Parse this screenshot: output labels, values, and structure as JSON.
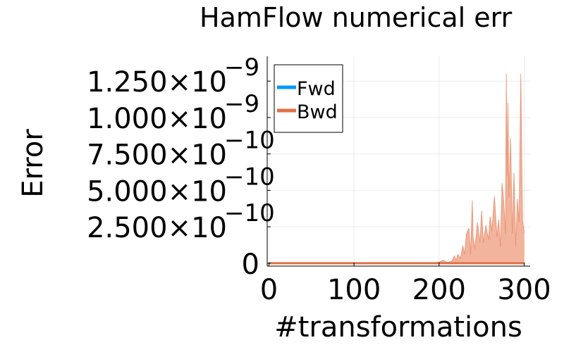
{
  "chart_data": {
    "type": "line",
    "title": "HamFlow numerical err",
    "xlabel": "#transformations",
    "ylabel": "Error",
    "xlim": [
      -2,
      307
    ],
    "ylim": [
      -2e-11,
      1.42e-09
    ],
    "grid": true,
    "legend_position": "top-left",
    "x_ticks": [
      {
        "value": 0,
        "label": "0"
      },
      {
        "value": 100,
        "label": "100"
      },
      {
        "value": 200,
        "label": "200"
      },
      {
        "value": 300,
        "label": "300"
      }
    ],
    "y_ticks": [
      {
        "value": 0,
        "mantissa": "0",
        "exponent": ""
      },
      {
        "value": 2.5e-10,
        "mantissa": "2.500×10",
        "exponent": "−10"
      },
      {
        "value": 5e-10,
        "mantissa": "5.000×10",
        "exponent": "−10"
      },
      {
        "value": 7.5e-10,
        "mantissa": "7.500×10",
        "exponent": "−10"
      },
      {
        "value": 1e-09,
        "mantissa": "1.000×10",
        "exponent": "−9"
      },
      {
        "value": 1.25e-09,
        "mantissa": "1.250×10",
        "exponent": "−9"
      }
    ],
    "series": [
      {
        "name": "Fwd",
        "color": "#009af9",
        "x": [
          0,
          50,
          100,
          150,
          200,
          250,
          300
        ],
        "y": [
          0,
          0,
          0,
          0,
          0,
          0,
          0
        ]
      },
      {
        "name": "Bwd",
        "color": "#e26f46",
        "fill_color": "#f2b49c",
        "x": [
          0,
          150,
          195,
          200,
          205,
          210,
          215,
          218,
          220,
          222,
          225,
          228,
          230,
          232,
          235,
          237,
          239,
          240,
          242,
          245,
          248,
          250,
          252,
          255,
          258,
          260,
          262,
          265,
          268,
          270,
          272,
          274,
          276,
          278,
          279,
          280,
          281,
          282,
          284,
          286,
          288,
          290,
          292,
          294,
          296,
          298,
          300
        ],
        "y": [
          0,
          0,
          4e-12,
          8e-12,
          2e-11,
          5e-12,
          1.5e-11,
          5e-11,
          1.8e-11,
          6e-11,
          3.5e-11,
          1.2e-10,
          6e-11,
          2e-10,
          2.4e-10,
          6e-11,
          4.3e-10,
          1.8e-10,
          1e-10,
          2.8e-10,
          1.4e-10,
          3.6e-10,
          1.4e-10,
          2.6e-10,
          1.6e-10,
          3.2e-10,
          2.2e-10,
          4.6e-10,
          1.8e-10,
          3e-10,
          1.1e-10,
          5.5e-10,
          4.2e-10,
          2e-10,
          1.3e-09,
          6e-10,
          1.1e-09,
          4.5e-10,
          8.6e-10,
          2e-10,
          6.2e-10,
          1.2e-10,
          4.4e-10,
          2.8e-10,
          1.3e-09,
          3e-10,
          2.1e-10
        ]
      }
    ]
  }
}
